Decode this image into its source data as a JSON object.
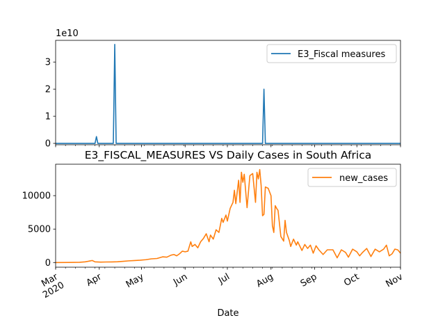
{
  "chart_data": [
    {
      "type": "line",
      "title": "",
      "xlabel": "",
      "ylabel": "",
      "offset_text": "1e10",
      "ylim": [
        -0.05,
        3.8
      ],
      "yticks": [
        0,
        1,
        2,
        3
      ],
      "ytick_labels": [
        "0",
        "1",
        "2",
        "3"
      ],
      "grid": false,
      "legend": "upper right",
      "series": [
        {
          "name": "E3_Fiscal measures",
          "color": "#1f77b4",
          "points": [
            [
              "2020-03-01",
              0
            ],
            [
              "2020-03-29",
              0
            ],
            [
              "2020-03-30",
              0.25
            ],
            [
              "2020-03-31",
              0
            ],
            [
              "2020-04-11",
              0
            ],
            [
              "2020-04-12",
              3.65
            ],
            [
              "2020-04-13",
              0
            ],
            [
              "2020-07-26",
              0
            ],
            [
              "2020-07-27",
              2.0
            ],
            [
              "2020-07-28",
              0
            ],
            [
              "2020-11-01",
              0
            ]
          ]
        }
      ]
    },
    {
      "type": "line",
      "title": "E3_FISCAL_MEASURES VS Daily Cases in South Africa",
      "xlabel": "Date",
      "ylabel": "",
      "ylim": [
        -700,
        14700
      ],
      "yticks": [
        0,
        5000,
        10000
      ],
      "ytick_labels": [
        "0",
        "5000",
        "10000"
      ],
      "xlim": [
        "2020-03-01",
        "2020-11-01"
      ],
      "xticks": [
        "2020-03-01",
        "2020-04-01",
        "2020-05-01",
        "2020-06-01",
        "2020-07-01",
        "2020-08-01",
        "2020-09-01",
        "2020-10-01",
        "2020-11-01"
      ],
      "xtick_labels": [
        "Mar\n2020",
        "Apr",
        "May",
        "Jun",
        "Jul",
        "Aug",
        "Sep",
        "Oct",
        "Nov"
      ],
      "grid": false,
      "legend": "upper right",
      "series": [
        {
          "name": "new_cases",
          "color": "#ff7f0e",
          "points": [
            [
              "2020-03-01",
              0
            ],
            [
              "2020-03-10",
              5
            ],
            [
              "2020-03-18",
              40
            ],
            [
              "2020-03-22",
              100
            ],
            [
              "2020-03-25",
              220
            ],
            [
              "2020-03-27",
              300
            ],
            [
              "2020-03-29",
              100
            ],
            [
              "2020-04-02",
              60
            ],
            [
              "2020-04-06",
              80
            ],
            [
              "2020-04-10",
              90
            ],
            [
              "2020-04-14",
              110
            ],
            [
              "2020-04-18",
              180
            ],
            [
              "2020-04-22",
              250
            ],
            [
              "2020-04-26",
              300
            ],
            [
              "2020-04-30",
              350
            ],
            [
              "2020-05-04",
              420
            ],
            [
              "2020-05-08",
              550
            ],
            [
              "2020-05-12",
              600
            ],
            [
              "2020-05-16",
              850
            ],
            [
              "2020-05-19",
              800
            ],
            [
              "2020-05-22",
              1100
            ],
            [
              "2020-05-24",
              1200
            ],
            [
              "2020-05-26",
              1000
            ],
            [
              "2020-05-28",
              1300
            ],
            [
              "2020-05-30",
              1700
            ],
            [
              "2020-06-01",
              1600
            ],
            [
              "2020-06-03",
              1700
            ],
            [
              "2020-06-05",
              3100
            ],
            [
              "2020-06-06",
              2400
            ],
            [
              "2020-06-08",
              2700
            ],
            [
              "2020-06-10",
              2200
            ],
            [
              "2020-06-12",
              3100
            ],
            [
              "2020-06-14",
              3600
            ],
            [
              "2020-06-16",
              4300
            ],
            [
              "2020-06-18",
              3100
            ],
            [
              "2020-06-19",
              4100
            ],
            [
              "2020-06-21",
              3500
            ],
            [
              "2020-06-23",
              4900
            ],
            [
              "2020-06-25",
              4500
            ],
            [
              "2020-06-27",
              6600
            ],
            [
              "2020-06-28",
              6000
            ],
            [
              "2020-06-30",
              7100
            ],
            [
              "2020-07-01",
              6200
            ],
            [
              "2020-07-03",
              8100
            ],
            [
              "2020-07-05",
              9000
            ],
            [
              "2020-07-06",
              10800
            ],
            [
              "2020-07-07",
              8800
            ],
            [
              "2020-07-09",
              12300
            ],
            [
              "2020-07-10",
              9000
            ],
            [
              "2020-07-11",
              13500
            ],
            [
              "2020-07-12",
              12000
            ],
            [
              "2020-07-13",
              13200
            ],
            [
              "2020-07-15",
              8200
            ],
            [
              "2020-07-17",
              13000
            ],
            [
              "2020-07-19",
              13300
            ],
            [
              "2020-07-21",
              9000
            ],
            [
              "2020-07-22",
              13500
            ],
            [
              "2020-07-23",
              12500
            ],
            [
              "2020-07-24",
              13900
            ],
            [
              "2020-07-25",
              11500
            ],
            [
              "2020-07-26",
              7000
            ],
            [
              "2020-07-27",
              7200
            ],
            [
              "2020-07-28",
              11300
            ],
            [
              "2020-07-30",
              11100
            ],
            [
              "2020-08-01",
              10000
            ],
            [
              "2020-08-02",
              5500
            ],
            [
              "2020-08-03",
              4500
            ],
            [
              "2020-08-04",
              8500
            ],
            [
              "2020-08-05",
              8100
            ],
            [
              "2020-08-06",
              7800
            ],
            [
              "2020-08-08",
              3900
            ],
            [
              "2020-08-10",
              3200
            ],
            [
              "2020-08-11",
              6300
            ],
            [
              "2020-08-12",
              4500
            ],
            [
              "2020-08-14",
              3300
            ],
            [
              "2020-08-15",
              2400
            ],
            [
              "2020-08-17",
              3500
            ],
            [
              "2020-08-19",
              2600
            ],
            [
              "2020-08-20",
              3100
            ],
            [
              "2020-08-23",
              1800
            ],
            [
              "2020-08-25",
              2700
            ],
            [
              "2020-08-27",
              2100
            ],
            [
              "2020-08-29",
              2600
            ],
            [
              "2020-08-31",
              1400
            ],
            [
              "2020-09-02",
              2500
            ],
            [
              "2020-09-04",
              1900
            ],
            [
              "2020-09-07",
              1200
            ],
            [
              "2020-09-10",
              1900
            ],
            [
              "2020-09-14",
              1900
            ],
            [
              "2020-09-17",
              700
            ],
            [
              "2020-09-20",
              1900
            ],
            [
              "2020-09-23",
              1500
            ],
            [
              "2020-09-25",
              800
            ],
            [
              "2020-09-28",
              2000
            ],
            [
              "2020-10-01",
              1600
            ],
            [
              "2020-10-03",
              1000
            ],
            [
              "2020-10-05",
              1500
            ],
            [
              "2020-10-08",
              2100
            ],
            [
              "2020-10-11",
              900
            ],
            [
              "2020-10-14",
              2000
            ],
            [
              "2020-10-17",
              1600
            ],
            [
              "2020-10-20",
              2000
            ],
            [
              "2020-10-22",
              2600
            ],
            [
              "2020-10-24",
              1000
            ],
            [
              "2020-10-26",
              1300
            ],
            [
              "2020-10-28",
              2000
            ],
            [
              "2020-10-30",
              1900
            ],
            [
              "2020-11-01",
              1400
            ]
          ]
        }
      ]
    }
  ]
}
